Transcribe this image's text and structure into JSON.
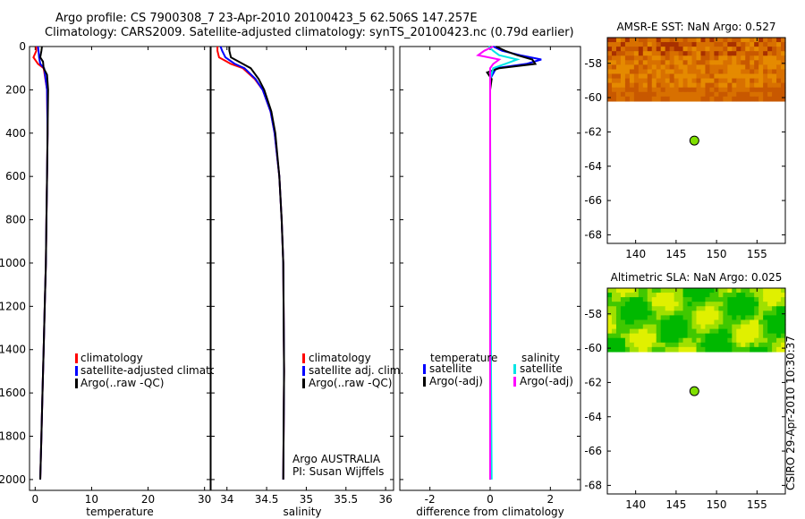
{
  "header": {
    "line1": "Argo profile: CS 7900308_7 23-Apr-2010 20100423_5 62.506S 147.257E",
    "line2": "Climatology: CARS2009. Satellite-adjusted climatology: synTS_20100423.nc (0.79d earlier)"
  },
  "side_label": "CSIRO 29-Apr-2010 10:30:37",
  "chart_data": [
    {
      "type": "line",
      "id": "temperature",
      "xlabel": "temperature",
      "ylabel": "",
      "xlim": [
        -1,
        31
      ],
      "ylim": [
        2050,
        0
      ],
      "xticks": [
        0,
        10,
        20,
        30
      ],
      "yticks": [
        0,
        200,
        400,
        600,
        800,
        1000,
        1200,
        1400,
        1600,
        1800,
        2000
      ],
      "legend": [
        "climatology",
        "satellite-adjusted climatology",
        "Argo(..raw -QC)"
      ],
      "legend_colors": [
        "#ff0000",
        "#0000ff",
        "#000000"
      ],
      "series": [
        {
          "name": "climatology",
          "color": "#ff0000",
          "depth": [
            0,
            20,
            50,
            80,
            100,
            200,
            400,
            600,
            800,
            1000,
            1200,
            1400,
            1600,
            1800,
            2000
          ],
          "values": [
            0.2,
            0.2,
            -0.3,
            0.5,
            1.5,
            2.1,
            2.2,
            2.1,
            2.0,
            1.9,
            1.7,
            1.5,
            1.3,
            1.1,
            0.9
          ]
        },
        {
          "name": "satellite-adjusted climatology",
          "color": "#0000ff",
          "depth": [
            0,
            20,
            50,
            80,
            100,
            200,
            400,
            600,
            800,
            1000,
            1200,
            1400,
            1600,
            1800,
            2000
          ],
          "values": [
            0.5,
            0.6,
            0.7,
            0.9,
            1.6,
            2.1,
            2.2,
            2.1,
            2.0,
            1.9,
            1.7,
            1.5,
            1.3,
            1.1,
            0.9
          ]
        },
        {
          "name": "Argo(..raw -QC)",
          "color": "#000000",
          "depth": [
            0,
            20,
            50,
            70,
            100,
            130,
            200,
            400,
            600,
            800,
            1000,
            1200,
            1400,
            1600,
            1800,
            2000
          ],
          "values": [
            1.2,
            1.1,
            0.9,
            1.4,
            1.5,
            2.1,
            2.3,
            2.2,
            2.1,
            2.0,
            1.9,
            1.7,
            1.5,
            1.3,
            1.1,
            0.9
          ]
        }
      ]
    },
    {
      "type": "line",
      "id": "salinity",
      "xlabel": "salinity",
      "ylabel": "",
      "xlim": [
        33.8,
        36.1
      ],
      "ylim": [
        2050,
        0
      ],
      "xticks": [
        34,
        34.5,
        35,
        35.5,
        36
      ],
      "xticklabels": [
        "34",
        "34.5",
        "35",
        "35.5",
        "36"
      ],
      "legend": [
        "climatology",
        "satellite adj. clim.",
        "Argo(..raw -QC)"
      ],
      "legend_colors": [
        "#ff0000",
        "#0000ff",
        "#000000"
      ],
      "annotations": [
        "Argo AUSTRALIA",
        "PI: Susan Wijffels"
      ],
      "series": [
        {
          "name": "climatology",
          "color": "#ff0000",
          "depth": [
            0,
            20,
            50,
            80,
            100,
            150,
            200,
            300,
            400,
            600,
            800,
            1000,
            1500,
            2000
          ],
          "values": [
            33.88,
            33.88,
            33.9,
            34.05,
            34.2,
            34.35,
            34.45,
            34.55,
            34.6,
            34.66,
            34.69,
            34.71,
            34.72,
            34.71
          ]
        },
        {
          "name": "satellite adj. clim.",
          "color": "#0000ff",
          "depth": [
            0,
            20,
            50,
            80,
            100,
            150,
            200,
            300,
            400,
            600,
            800,
            1000,
            1500,
            2000
          ],
          "values": [
            33.92,
            33.94,
            33.98,
            34.1,
            34.22,
            34.36,
            34.45,
            34.55,
            34.6,
            34.66,
            34.69,
            34.71,
            34.72,
            34.71
          ]
        },
        {
          "name": "Argo(..raw -QC)",
          "color": "#000000",
          "depth": [
            0,
            20,
            50,
            80,
            100,
            150,
            200,
            300,
            400,
            600,
            800,
            1000,
            1500,
            2000
          ],
          "values": [
            34.03,
            34.03,
            34.05,
            34.2,
            34.3,
            34.4,
            34.47,
            34.56,
            34.61,
            34.66,
            34.69,
            34.71,
            34.72,
            34.71
          ]
        }
      ]
    },
    {
      "type": "line",
      "id": "difference",
      "xlabel": "difference from climatology",
      "ylabel": "",
      "xlim": [
        -3,
        3
      ],
      "ylim": [
        2050,
        0
      ],
      "xticks": [
        -2,
        0,
        2
      ],
      "legend_groups": [
        {
          "title": "temperature",
          "entries": [
            {
              "label": "satellite",
              "color": "#0000ff"
            },
            {
              "label": "Argo(-adj)",
              "color": "#000000"
            }
          ]
        },
        {
          "title": "salinity",
          "entries": [
            {
              "label": "satellite",
              "color": "#00e5e5"
            },
            {
              "label": "Argo(-adj)",
              "color": "#ff00ff"
            }
          ]
        }
      ],
      "series": [
        {
          "name": "temperature satellite",
          "color": "#0000ff",
          "depth": [
            0,
            20,
            40,
            60,
            80,
            100,
            150,
            200,
            400,
            600,
            1000,
            1500,
            2000
          ],
          "values": [
            0.1,
            0.4,
            1.0,
            1.7,
            1.2,
            0.2,
            0.0,
            0.0,
            0.0,
            0.0,
            0.0,
            0.0,
            0.0
          ]
        },
        {
          "name": "temperature Argo(-adj)",
          "color": "#000000",
          "depth": [
            0,
            20,
            40,
            60,
            80,
            100,
            120,
            150,
            200,
            400,
            600,
            1000,
            1500,
            2000
          ],
          "values": [
            0.2,
            0.5,
            0.9,
            1.4,
            1.5,
            0.3,
            -0.1,
            0.05,
            0.0,
            0.0,
            0.0,
            0.0,
            0.0,
            0.0
          ]
        },
        {
          "name": "salinity satellite",
          "color": "#00e5e5",
          "depth": [
            0,
            20,
            40,
            60,
            80,
            100,
            150,
            200,
            400,
            1000,
            1500,
            2000
          ],
          "values": [
            -0.05,
            0.1,
            0.3,
            0.9,
            0.5,
            0.1,
            0.0,
            0.0,
            0.0,
            0.02,
            0.03,
            0.05
          ]
        },
        {
          "name": "salinity Argo(-adj)",
          "color": "#ff00ff",
          "depth": [
            0,
            20,
            40,
            60,
            80,
            100,
            150,
            200,
            400,
            1000,
            2000
          ],
          "values": [
            0.1,
            -0.2,
            -0.4,
            0.3,
            0.1,
            0.0,
            0.0,
            0.0,
            0.0,
            0.0,
            0.0
          ]
        }
      ]
    },
    {
      "type": "heatmap",
      "id": "sst",
      "title": "AMSR-E SST: NaN Argo: 0.527",
      "xlim": [
        136.5,
        158.5
      ],
      "ylim": [
        -68.5,
        -56.5
      ],
      "xticks": [
        140,
        145,
        150,
        155
      ],
      "yticks": [
        -58,
        -60,
        -62,
        -64,
        -66,
        -68
      ],
      "data_lat_range": [
        -60.2,
        -56.5
      ],
      "palette": [
        "#e58a00",
        "#c85800",
        "#a83000",
        "#d87000"
      ],
      "argo_point": {
        "lon": 147.257,
        "lat": -62.506,
        "color": "#80e000"
      }
    },
    {
      "type": "heatmap",
      "id": "sla",
      "title": "Altimetric SLA: NaN Argo: 0.025",
      "xlim": [
        136.5,
        158.5
      ],
      "ylim": [
        -68.5,
        -56.5
      ],
      "xticks": [
        140,
        145,
        150,
        155
      ],
      "yticks": [
        -58,
        -60,
        -62,
        -64,
        -66,
        -68
      ],
      "data_lat_range": [
        -60.2,
        -56.5
      ],
      "palette": [
        "#00b800",
        "#40c800",
        "#a0e000",
        "#e0f000"
      ],
      "argo_point": {
        "lon": 147.257,
        "lat": -62.506,
        "color": "#80e000"
      }
    }
  ]
}
